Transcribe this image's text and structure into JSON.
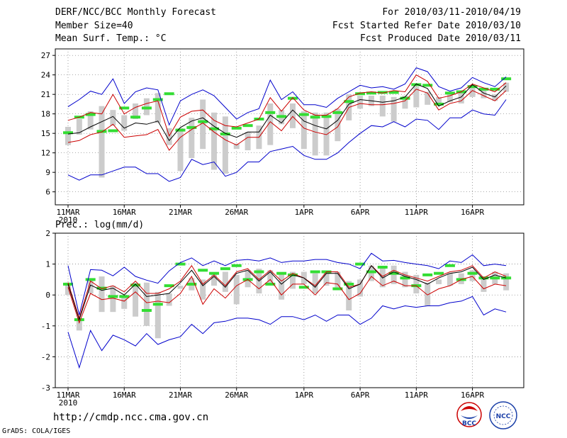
{
  "header": {
    "title": "DERF/NCC/BCC Monthly Forecast",
    "member_size": "Member Size=40",
    "variable_top": "Mean Surf. Temp.: °C",
    "forecast_period": "For 2010/03/11-2010/04/19",
    "started_refer": "Fcst Started Refer Date 2010/03/10",
    "produced": "Fcst Produced Date 2010/03/11"
  },
  "footer": {
    "url": "http://cmdp.ncc.cma.gov.cn",
    "credit": "GrADS: COLA/IGES",
    "logo_left": "BCC",
    "logo_right": "NCC"
  },
  "colors": {
    "ensemble_mean": "#000000",
    "spread": "#cc0000",
    "extremes": "#0000cc",
    "median_bar": "#33dd33",
    "iqr_box": "#cccccc"
  },
  "chart_data": [
    {
      "type": "line",
      "title": "Mean Surf. Temp.: °C",
      "ylabel": "°C",
      "ylim": [
        4,
        28
      ],
      "yticks": [
        6,
        9,
        12,
        15,
        18,
        21,
        24,
        27
      ],
      "xlim": [
        0,
        39
      ],
      "xticks": [
        {
          "day": 0,
          "label": "11MAR",
          "sub": "2010"
        },
        {
          "day": 5,
          "label": "16MAR"
        },
        {
          "day": 10,
          "label": "21MAR"
        },
        {
          "day": 15,
          "label": "26MAR"
        },
        {
          "day": 21,
          "label": "1APR"
        },
        {
          "day": 26,
          "label": "6APR"
        },
        {
          "day": 31,
          "label": "11APR"
        },
        {
          "day": 36,
          "label": "16APR"
        }
      ],
      "series": [
        {
          "name": "max",
          "values": [
            19.1,
            20.2,
            21.5,
            21.0,
            23.4,
            19.6,
            21.4,
            22.0,
            21.7,
            16.3,
            20.0,
            21.0,
            21.7,
            20.8,
            19.0,
            17.2,
            18.2,
            18.8,
            23.2,
            20.2,
            21.4,
            19.4,
            19.4,
            19.0,
            20.4,
            21.4,
            22.4,
            22.0,
            22.2,
            21.8,
            22.6,
            25.1,
            24.5,
            22.2,
            21.5,
            22.0,
            23.6,
            22.8,
            22.2,
            23.7
          ]
        },
        {
          "name": "upper",
          "values": [
            17.0,
            17.5,
            18.2,
            18.0,
            21.0,
            18.0,
            19.0,
            19.6,
            20.0,
            14.6,
            17.5,
            18.4,
            18.6,
            17.0,
            16.2,
            16.0,
            16.6,
            17.2,
            20.5,
            18.4,
            20.5,
            18.6,
            17.8,
            17.8,
            18.8,
            20.6,
            21.2,
            21.4,
            21.2,
            21.6,
            21.4,
            24.0,
            23.0,
            20.4,
            20.8,
            21.4,
            22.6,
            22.0,
            21.4,
            22.8
          ]
        },
        {
          "name": "mean",
          "values": [
            14.9,
            15.1,
            16.0,
            16.8,
            17.6,
            15.8,
            16.6,
            16.4,
            16.9,
            13.9,
            15.9,
            16.9,
            17.4,
            16.1,
            15.0,
            14.4,
            15.2,
            15.2,
            17.8,
            16.6,
            18.6,
            16.9,
            16.2,
            15.7,
            17.0,
            19.5,
            20.2,
            20.0,
            19.8,
            20.0,
            20.6,
            22.6,
            21.9,
            19.2,
            20.0,
            20.6,
            22.5,
            21.2,
            20.6,
            22.3
          ]
        },
        {
          "name": "lower",
          "values": [
            13.6,
            13.9,
            14.8,
            15.2,
            16.4,
            14.4,
            14.6,
            14.8,
            15.6,
            12.4,
            14.4,
            15.6,
            16.6,
            15.2,
            14.0,
            13.2,
            14.4,
            14.4,
            16.8,
            15.4,
            17.6,
            15.8,
            15.2,
            14.8,
            16.0,
            19.0,
            19.6,
            19.4,
            19.4,
            19.6,
            20.0,
            21.8,
            21.2,
            18.6,
            19.6,
            20.0,
            21.6,
            20.8,
            20.0,
            21.6
          ]
        },
        {
          "name": "min",
          "values": [
            8.6,
            7.8,
            8.6,
            8.6,
            9.2,
            9.8,
            9.8,
            8.8,
            8.8,
            7.6,
            8.2,
            11.0,
            10.2,
            10.6,
            8.4,
            9.0,
            10.6,
            10.6,
            12.2,
            12.6,
            13.0,
            11.6,
            11.0,
            11.0,
            12.0,
            13.6,
            15.0,
            16.2,
            16.0,
            16.8,
            16.0,
            17.2,
            17.0,
            15.6,
            17.4,
            17.4,
            18.6,
            18.0,
            17.8,
            20.2
          ]
        },
        {
          "name": "box_top",
          "values": [
            16.0,
            17.2,
            18.4,
            19.2,
            18.6,
            17.8,
            19.6,
            20.4,
            21.2,
            15.8,
            15.8,
            17.4,
            20.2,
            18.2,
            17.6,
            13.4,
            15.2,
            16.2,
            19.6,
            18.6,
            19.6,
            18.4,
            18.2,
            18.2,
            18.8,
            21.0,
            20.8,
            20.8,
            20.8,
            20.6,
            20.8,
            22.2,
            21.4,
            20.6,
            21.4,
            21.2,
            22.4,
            21.6,
            21.0,
            22.8
          ]
        },
        {
          "name": "box_bottom",
          "values": [
            13.2,
            14.8,
            15.6,
            8.2,
            16.2,
            15.4,
            17.2,
            17.8,
            16.6,
            13.2,
            9.2,
            11.2,
            12.6,
            9.4,
            8.8,
            12.6,
            12.4,
            12.6,
            13.2,
            16.4,
            15.8,
            12.6,
            11.6,
            11.6,
            13.8,
            17.0,
            18.8,
            19.2,
            17.6,
            16.8,
            18.8,
            19.0,
            19.4,
            19.4,
            19.8,
            19.6,
            20.6,
            20.4,
            20.0,
            21.4
          ]
        },
        {
          "name": "median",
          "values": [
            15.1,
            17.5,
            17.9,
            15.3,
            15.4,
            18.9,
            17.5,
            18.9,
            20.2,
            21.1,
            15.5,
            15.9,
            16.8,
            15.7,
            14.9,
            15.8,
            16.2,
            17.2,
            18.2,
            17.6,
            20.4,
            17.9,
            17.5,
            17.6,
            18.2,
            19.9,
            21.1,
            21.2,
            21.3,
            21.3,
            20.4,
            22.5,
            22.4,
            19.5,
            21.2,
            21.4,
            22.2,
            21.8,
            21.8,
            23.4
          ]
        }
      ]
    },
    {
      "type": "line",
      "title": "Prec.: log(mm/d)",
      "ylabel": "log(mm/d)",
      "ylim": [
        -3,
        2
      ],
      "yticks": [
        -3,
        -2,
        -1,
        0,
        1,
        2
      ],
      "xlim": [
        0,
        39
      ],
      "xticks": [
        {
          "day": 0,
          "label": "11MAR",
          "sub": "2010"
        },
        {
          "day": 5,
          "label": "16MAR"
        },
        {
          "day": 10,
          "label": "21MAR"
        },
        {
          "day": 15,
          "label": "26MAR"
        },
        {
          "day": 21,
          "label": "1APR"
        },
        {
          "day": 26,
          "label": "6APR"
        },
        {
          "day": 31,
          "label": "11APR"
        },
        {
          "day": 36,
          "label": "16APR"
        }
      ],
      "series": [
        {
          "name": "max",
          "values": [
            0.95,
            -0.65,
            0.82,
            0.8,
            0.62,
            0.9,
            0.6,
            0.48,
            0.38,
            0.78,
            1.05,
            1.2,
            0.95,
            1.1,
            0.95,
            1.12,
            1.15,
            1.1,
            1.2,
            1.05,
            1.1,
            1.1,
            1.15,
            1.15,
            1.05,
            1.0,
            0.85,
            1.35,
            1.1,
            1.12,
            1.05,
            1.0,
            0.95,
            0.85,
            1.1,
            1.05,
            1.3,
            0.95,
            1.0,
            0.95
          ]
        },
        {
          "name": "upper",
          "values": [
            0.4,
            -0.75,
            0.45,
            0.2,
            0.3,
            0.1,
            0.45,
            0.05,
            0.05,
            0.2,
            0.45,
            0.95,
            0.35,
            0.65,
            0.3,
            0.75,
            0.85,
            0.5,
            0.8,
            0.45,
            0.7,
            0.55,
            0.3,
            0.75,
            0.75,
            0.25,
            0.35,
            0.95,
            0.6,
            0.8,
            0.65,
            0.55,
            0.45,
            0.6,
            0.75,
            0.8,
            0.95,
            0.55,
            0.75,
            0.6
          ]
        },
        {
          "name": "mean",
          "values": [
            0.35,
            -0.8,
            0.32,
            0.15,
            0.22,
            0.0,
            0.35,
            -0.05,
            0.0,
            0.05,
            0.4,
            0.8,
            0.3,
            0.6,
            0.25,
            0.7,
            0.8,
            0.45,
            0.75,
            0.35,
            0.65,
            0.55,
            0.25,
            0.7,
            0.7,
            0.2,
            0.35,
            0.95,
            0.55,
            0.75,
            0.6,
            0.5,
            0.35,
            0.55,
            0.7,
            0.75,
            0.9,
            0.5,
            0.65,
            0.55
          ]
        },
        {
          "name": "lower",
          "values": [
            0.25,
            -0.9,
            0.05,
            -0.15,
            -0.1,
            -0.2,
            0.1,
            -0.25,
            -0.2,
            -0.25,
            0.05,
            0.6,
            -0.3,
            0.2,
            -0.1,
            0.3,
            0.5,
            0.2,
            0.5,
            0.0,
            0.35,
            0.35,
            0.0,
            0.4,
            0.35,
            -0.15,
            0.05,
            0.6,
            0.3,
            0.45,
            0.3,
            0.3,
            0.0,
            0.2,
            0.3,
            0.5,
            0.6,
            0.2,
            0.35,
            0.3
          ]
        },
        {
          "name": "min",
          "values": [
            -1.2,
            -2.35,
            -1.15,
            -1.8,
            -1.3,
            -1.45,
            -1.65,
            -1.25,
            -1.6,
            -1.45,
            -1.35,
            -0.95,
            -1.25,
            -0.9,
            -0.85,
            -0.75,
            -0.75,
            -0.8,
            -0.95,
            -0.7,
            -0.7,
            -0.8,
            -0.65,
            -0.85,
            -0.65,
            -0.65,
            -0.95,
            -0.75,
            -0.35,
            -0.45,
            -0.35,
            -0.4,
            -0.35,
            -0.35,
            -0.25,
            -0.2,
            -0.05,
            -0.65,
            -0.45,
            -0.55
          ]
        },
        {
          "name": "box_top",
          "values": [
            0.4,
            -0.75,
            0.5,
            0.6,
            0.3,
            0.0,
            0.4,
            0.4,
            0.1,
            0.05,
            0.3,
            0.55,
            0.5,
            0.7,
            0.75,
            0.65,
            0.8,
            0.85,
            0.8,
            0.7,
            0.75,
            0.75,
            0.7,
            0.75,
            0.75,
            0.45,
            0.5,
            0.95,
            0.9,
            0.95,
            0.75,
            0.65,
            0.4,
            0.5,
            0.7,
            0.7,
            0.8,
            0.6,
            0.75,
            0.7
          ]
        },
        {
          "name": "box_bottom",
          "values": [
            0.0,
            -1.15,
            0.05,
            -0.55,
            -0.55,
            -0.45,
            -0.7,
            -1.0,
            -1.4,
            -0.35,
            0.2,
            0.15,
            -0.15,
            0.3,
            0.1,
            -0.3,
            0.25,
            0.05,
            0.35,
            -0.15,
            0.2,
            0.35,
            0.05,
            0.3,
            0.25,
            -0.5,
            -0.05,
            0.45,
            0.25,
            0.35,
            0.25,
            0.05,
            -0.35,
            0.35,
            0.3,
            0.35,
            0.45,
            0.1,
            0.35,
            0.15
          ]
        },
        {
          "name": "median",
          "values": [
            0.35,
            -0.8,
            0.5,
            0.22,
            -0.05,
            -0.05,
            0.32,
            -0.5,
            -0.3,
            0.3,
            1.0,
            0.35,
            0.8,
            0.7,
            0.85,
            0.95,
            0.5,
            0.75,
            0.35,
            0.7,
            0.65,
            0.25,
            0.75,
            0.75,
            0.2,
            0.35,
            1.0,
            0.75,
            0.9,
            0.7,
            0.55,
            0.3,
            0.65,
            0.7,
            0.95,
            0.5,
            0.7,
            0.55,
            0.55,
            0.55
          ]
        }
      ]
    }
  ]
}
